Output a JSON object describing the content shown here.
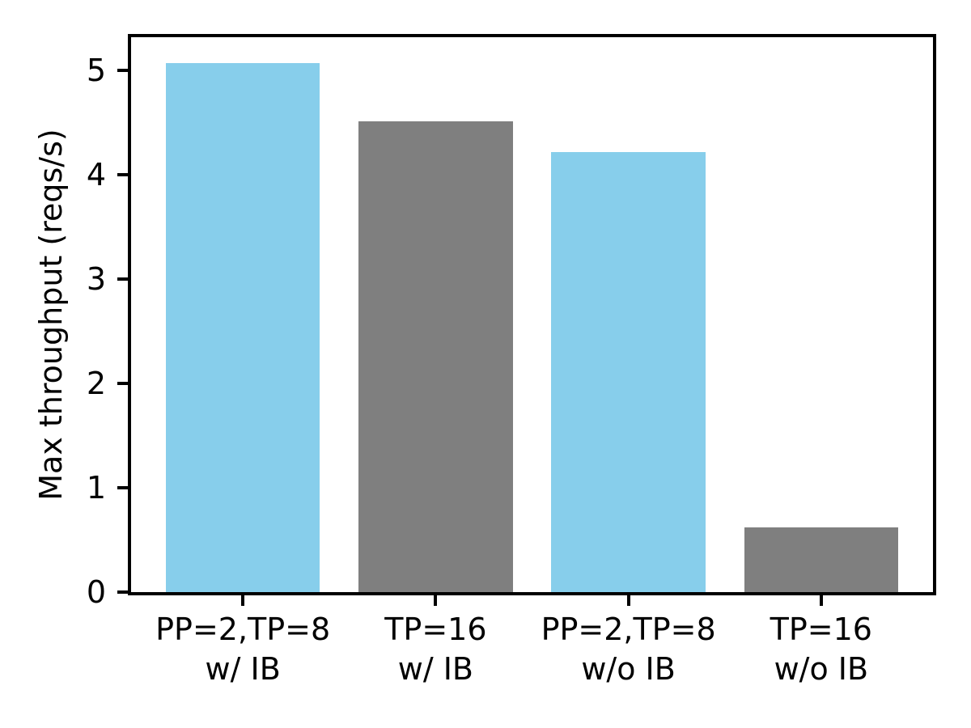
{
  "figure": {
    "background_color": "#ffffff",
    "axis_color": "#000000",
    "accent_blue": "#87ceeb",
    "accent_gray": "#7f7f7f"
  },
  "chart_data": {
    "type": "bar",
    "title": "",
    "xlabel": "",
    "ylabel": "Max throughput (reqs/s)",
    "categories": [
      "PP=2,TP=8\nw/ IB",
      "TP=16\nw/ IB",
      "PP=2,TP=8\nw/o IB",
      "TP=16\nw/o IB"
    ],
    "values": [
      5.07,
      4.51,
      4.22,
      0.62
    ],
    "bar_colors": [
      "#87ceeb",
      "#7f7f7f",
      "#87ceeb",
      "#7f7f7f"
    ],
    "yticks": [
      0,
      1,
      2,
      3,
      4,
      5
    ],
    "ylim": [
      0,
      5.32
    ],
    "xlim": [
      -0.58,
      3.58
    ],
    "bar_width": 0.8,
    "grid": false,
    "legend": null
  }
}
